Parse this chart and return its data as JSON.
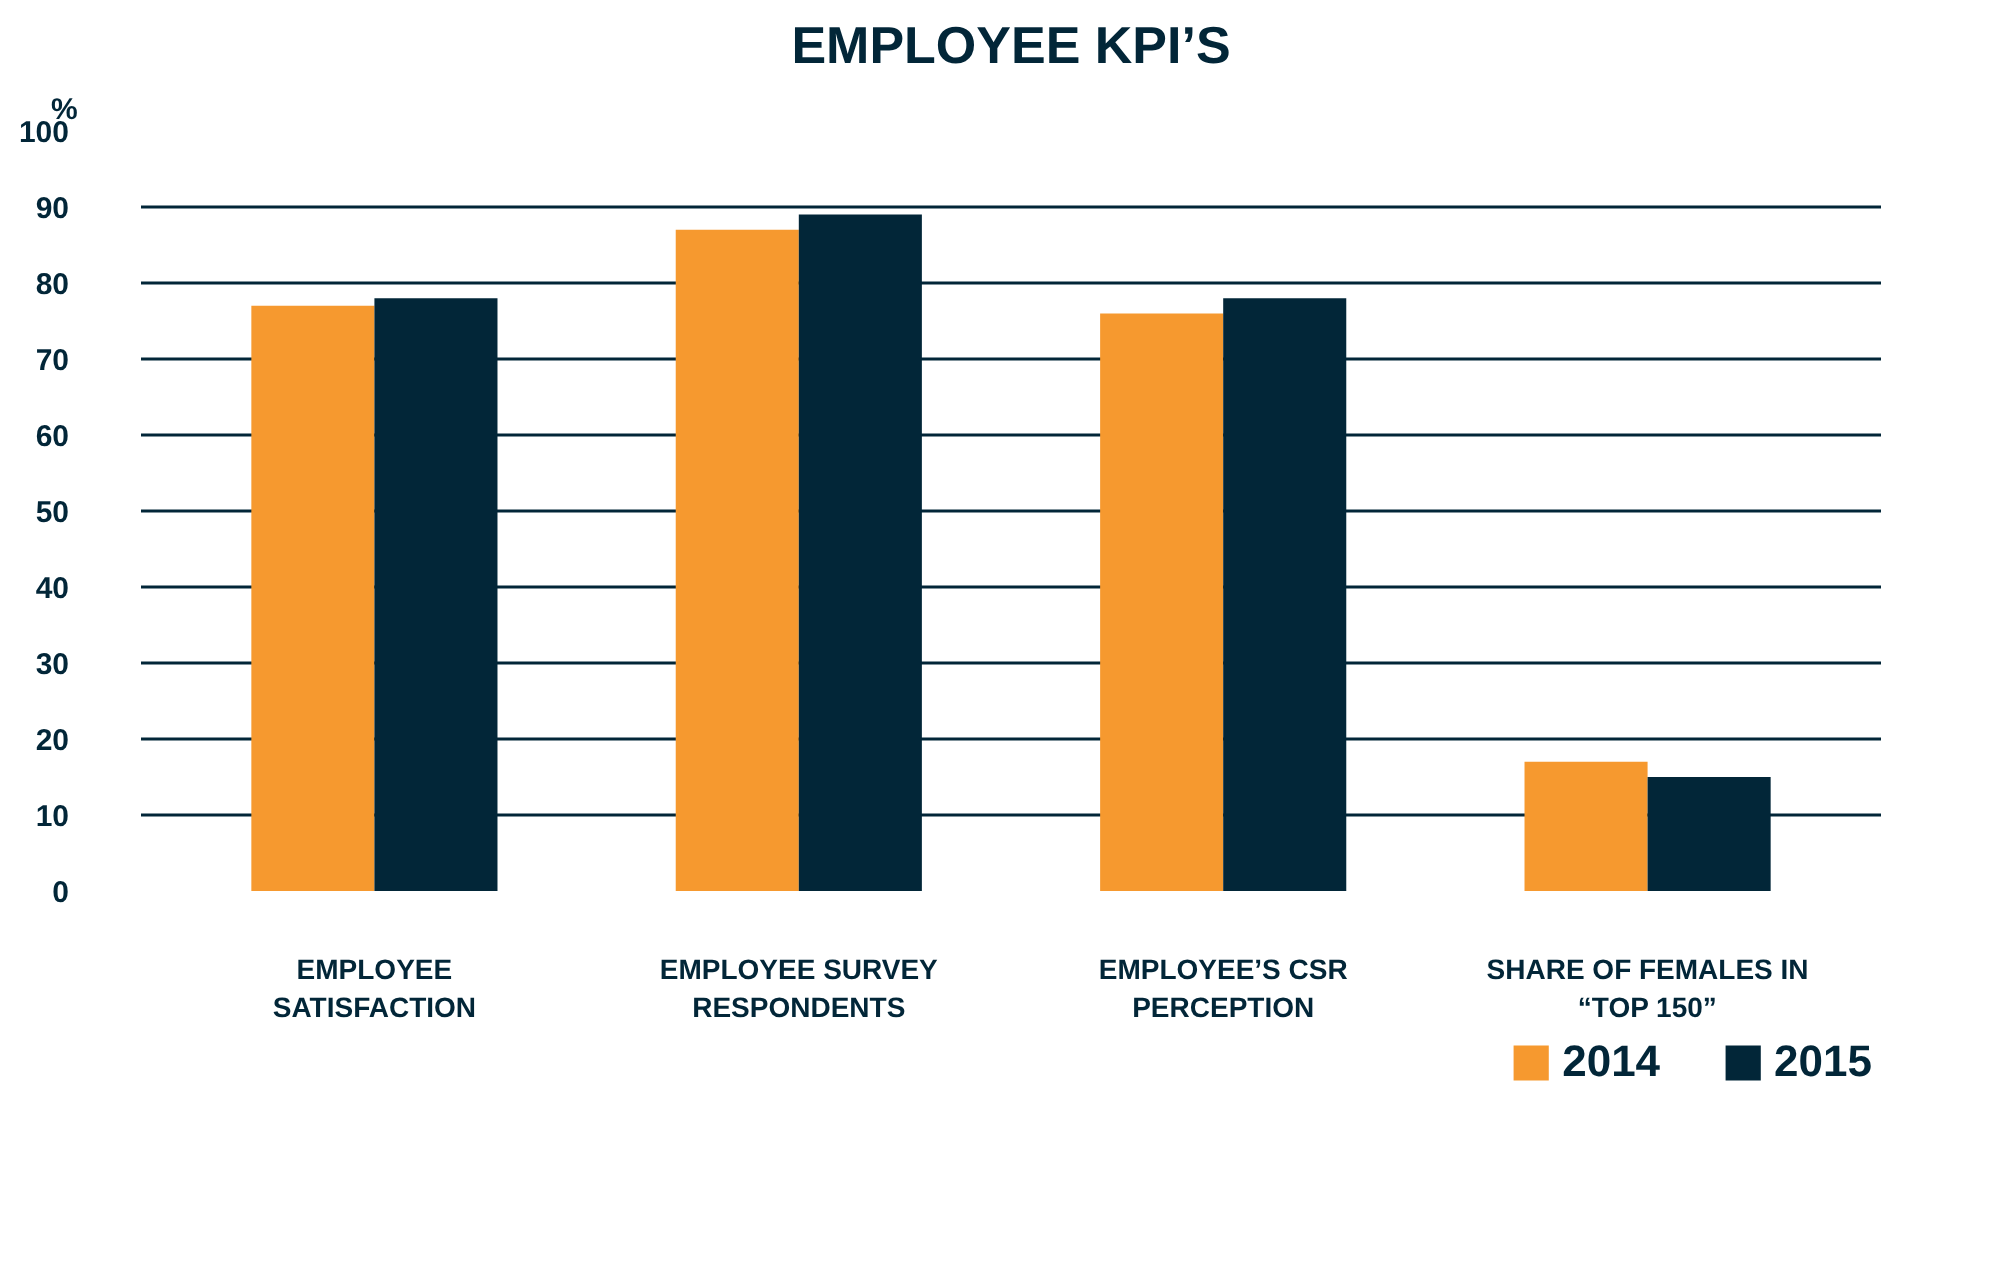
{
  "chart_data": {
    "type": "bar",
    "title": "EMPLOYEE KPI’S",
    "ylabel": "%",
    "categories": [
      "EMPLOYEE SATISFACTION",
      "EMPLOYEE SURVEY RESPONDENTS",
      "EMPLOYEE’S CSR PERCEPTION",
      "SHARE OF FEMALES IN “TOP 150”"
    ],
    "series": [
      {
        "name": "2014",
        "color": "#f6992f",
        "values": [
          77,
          87,
          76,
          17
        ]
      },
      {
        "name": "2015",
        "color": "#022638",
        "values": [
          78,
          89,
          78,
          15
        ]
      }
    ],
    "ylim": [
      0,
      100
    ],
    "yticks": [
      0,
      10,
      20,
      30,
      40,
      50,
      60,
      70,
      80,
      90,
      100
    ],
    "grid": "y",
    "legend": "bottom right"
  }
}
